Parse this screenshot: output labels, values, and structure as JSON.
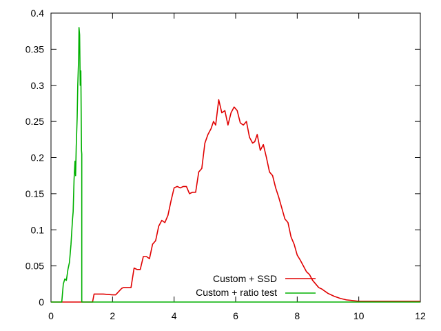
{
  "chart_data": {
    "type": "line",
    "title": "",
    "xlabel": "",
    "ylabel": "",
    "xlim": [
      0,
      12
    ],
    "ylim": [
      0,
      0.4
    ],
    "xticks": [
      0,
      2,
      4,
      6,
      8,
      10,
      12
    ],
    "yticks": [
      0,
      0.05,
      0.1,
      0.15,
      0.2,
      0.25,
      0.3,
      0.35,
      0.4
    ],
    "xtick_labels": [
      "0",
      "2",
      "4",
      "6",
      "8",
      "10",
      "12"
    ],
    "ytick_labels": [
      "0",
      "0.05",
      "0.1",
      "0.15",
      "0.2",
      "0.25",
      "0.3",
      "0.35",
      "0.4"
    ],
    "grid": false,
    "legend_position": "bottom-right",
    "series": [
      {
        "name": "Custom + SSD",
        "color": "#e00000",
        "x": [
          0,
          1.35,
          1.4,
          1.7,
          2.0,
          2.1,
          2.3,
          2.35,
          2.6,
          2.7,
          2.8,
          2.9,
          3.0,
          3.1,
          3.2,
          3.3,
          3.4,
          3.5,
          3.6,
          3.7,
          3.8,
          3.9,
          4.0,
          4.1,
          4.2,
          4.3,
          4.4,
          4.5,
          4.6,
          4.7,
          4.8,
          4.9,
          5.0,
          5.1,
          5.2,
          5.28,
          5.35,
          5.45,
          5.55,
          5.65,
          5.75,
          5.85,
          5.95,
          6.05,
          6.15,
          6.25,
          6.35,
          6.45,
          6.55,
          6.62,
          6.7,
          6.8,
          6.9,
          7.0,
          7.1,
          7.2,
          7.3,
          7.4,
          7.5,
          7.6,
          7.7,
          7.8,
          7.9,
          8.0,
          8.1,
          8.2,
          8.3,
          8.4,
          8.5,
          8.6,
          8.7,
          8.8,
          8.9,
          9.0,
          9.2,
          9.4,
          9.6,
          9.8,
          10.0,
          10.1,
          12.0
        ],
        "y": [
          0,
          0,
          0.011,
          0.011,
          0.01,
          0.01,
          0.019,
          0.02,
          0.02,
          0.047,
          0.045,
          0.045,
          0.063,
          0.063,
          0.06,
          0.08,
          0.085,
          0.105,
          0.113,
          0.11,
          0.12,
          0.14,
          0.158,
          0.16,
          0.158,
          0.16,
          0.16,
          0.15,
          0.152,
          0.152,
          0.18,
          0.185,
          0.22,
          0.232,
          0.24,
          0.25,
          0.245,
          0.28,
          0.262,
          0.265,
          0.245,
          0.262,
          0.27,
          0.265,
          0.248,
          0.245,
          0.25,
          0.228,
          0.22,
          0.222,
          0.232,
          0.21,
          0.218,
          0.2,
          0.18,
          0.175,
          0.158,
          0.145,
          0.13,
          0.115,
          0.11,
          0.09,
          0.08,
          0.065,
          0.058,
          0.05,
          0.042,
          0.038,
          0.03,
          0.025,
          0.02,
          0.018,
          0.015,
          0.012,
          0.008,
          0.005,
          0.003,
          0.002,
          0.001,
          0.001,
          0.001
        ]
      },
      {
        "name": "Custom + ratio test",
        "color": "#00b000",
        "x": [
          0,
          0.35,
          0.4,
          0.45,
          0.5,
          0.55,
          0.6,
          0.65,
          0.7,
          0.72,
          0.75,
          0.78,
          0.8,
          0.82,
          0.85,
          0.87,
          0.9,
          0.91,
          0.93,
          0.95,
          0.97,
          0.99,
          1.0,
          1.0,
          12.0
        ],
        "y": [
          0,
          0,
          0.025,
          0.032,
          0.03,
          0.045,
          0.055,
          0.08,
          0.115,
          0.125,
          0.17,
          0.195,
          0.175,
          0.215,
          0.255,
          0.3,
          0.34,
          0.38,
          0.37,
          0.3,
          0.32,
          0.21,
          0.205,
          0,
          0
        ]
      }
    ]
  }
}
